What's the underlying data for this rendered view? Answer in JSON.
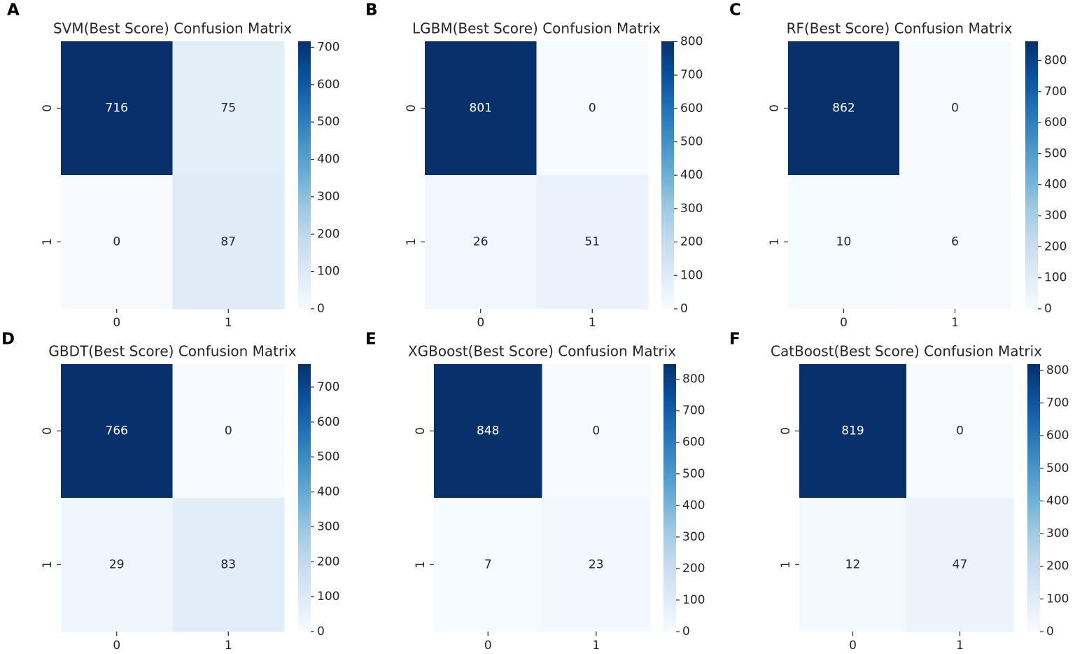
{
  "chart_data": [
    {
      "type": "heatmap",
      "panel": "A",
      "title": "SVM(Best Score) Confusion Matrix",
      "categories": [
        "0",
        "1"
      ],
      "ycategories": [
        "0",
        "1"
      ],
      "values": [
        [
          716,
          75
        ],
        [
          0,
          87
        ]
      ],
      "colormap": "Blues",
      "clim": [
        0,
        716
      ],
      "cticks": [
        0,
        100,
        200,
        300,
        400,
        500,
        600,
        700
      ]
    },
    {
      "type": "heatmap",
      "panel": "B",
      "title": "LGBM(Best Score) Confusion Matrix",
      "categories": [
        "0",
        "1"
      ],
      "ycategories": [
        "0",
        "1"
      ],
      "values": [
        [
          801,
          0
        ],
        [
          26,
          51
        ]
      ],
      "colormap": "Blues",
      "clim": [
        0,
        801
      ],
      "cticks": [
        0,
        100,
        200,
        300,
        400,
        500,
        600,
        700,
        800
      ]
    },
    {
      "type": "heatmap",
      "panel": "C",
      "title": "RF(Best Score) Confusion Matrix",
      "categories": [
        "0",
        "1"
      ],
      "ycategories": [
        "0",
        "1"
      ],
      "values": [
        [
          862,
          0
        ],
        [
          10,
          6
        ]
      ],
      "colormap": "Blues",
      "clim": [
        0,
        862
      ],
      "cticks": [
        0,
        100,
        200,
        300,
        400,
        500,
        600,
        700,
        800
      ]
    },
    {
      "type": "heatmap",
      "panel": "D",
      "title": "GBDT(Best Score) Confusion Matrix",
      "categories": [
        "0",
        "1"
      ],
      "ycategories": [
        "0",
        "1"
      ],
      "values": [
        [
          766,
          0
        ],
        [
          29,
          83
        ]
      ],
      "colormap": "Blues",
      "clim": [
        0,
        766
      ],
      "cticks": [
        0,
        100,
        200,
        300,
        400,
        500,
        600,
        700
      ]
    },
    {
      "type": "heatmap",
      "panel": "E",
      "title": "XGBoost(Best Score) Confusion Matrix",
      "categories": [
        "0",
        "1"
      ],
      "ycategories": [
        "0",
        "1"
      ],
      "values": [
        [
          848,
          0
        ],
        [
          7,
          23
        ]
      ],
      "colormap": "Blues",
      "clim": [
        0,
        848
      ],
      "cticks": [
        0,
        100,
        200,
        300,
        400,
        500,
        600,
        700,
        800
      ]
    },
    {
      "type": "heatmap",
      "panel": "F",
      "title": "CatBoost(Best Score) Confusion Matrix",
      "categories": [
        "0",
        "1"
      ],
      "ycategories": [
        "0",
        "1"
      ],
      "values": [
        [
          819,
          0
        ],
        [
          12,
          47
        ]
      ],
      "colormap": "Blues",
      "clim": [
        0,
        819
      ],
      "cticks": [
        0,
        100,
        200,
        300,
        400,
        500,
        600,
        700,
        800
      ]
    }
  ]
}
